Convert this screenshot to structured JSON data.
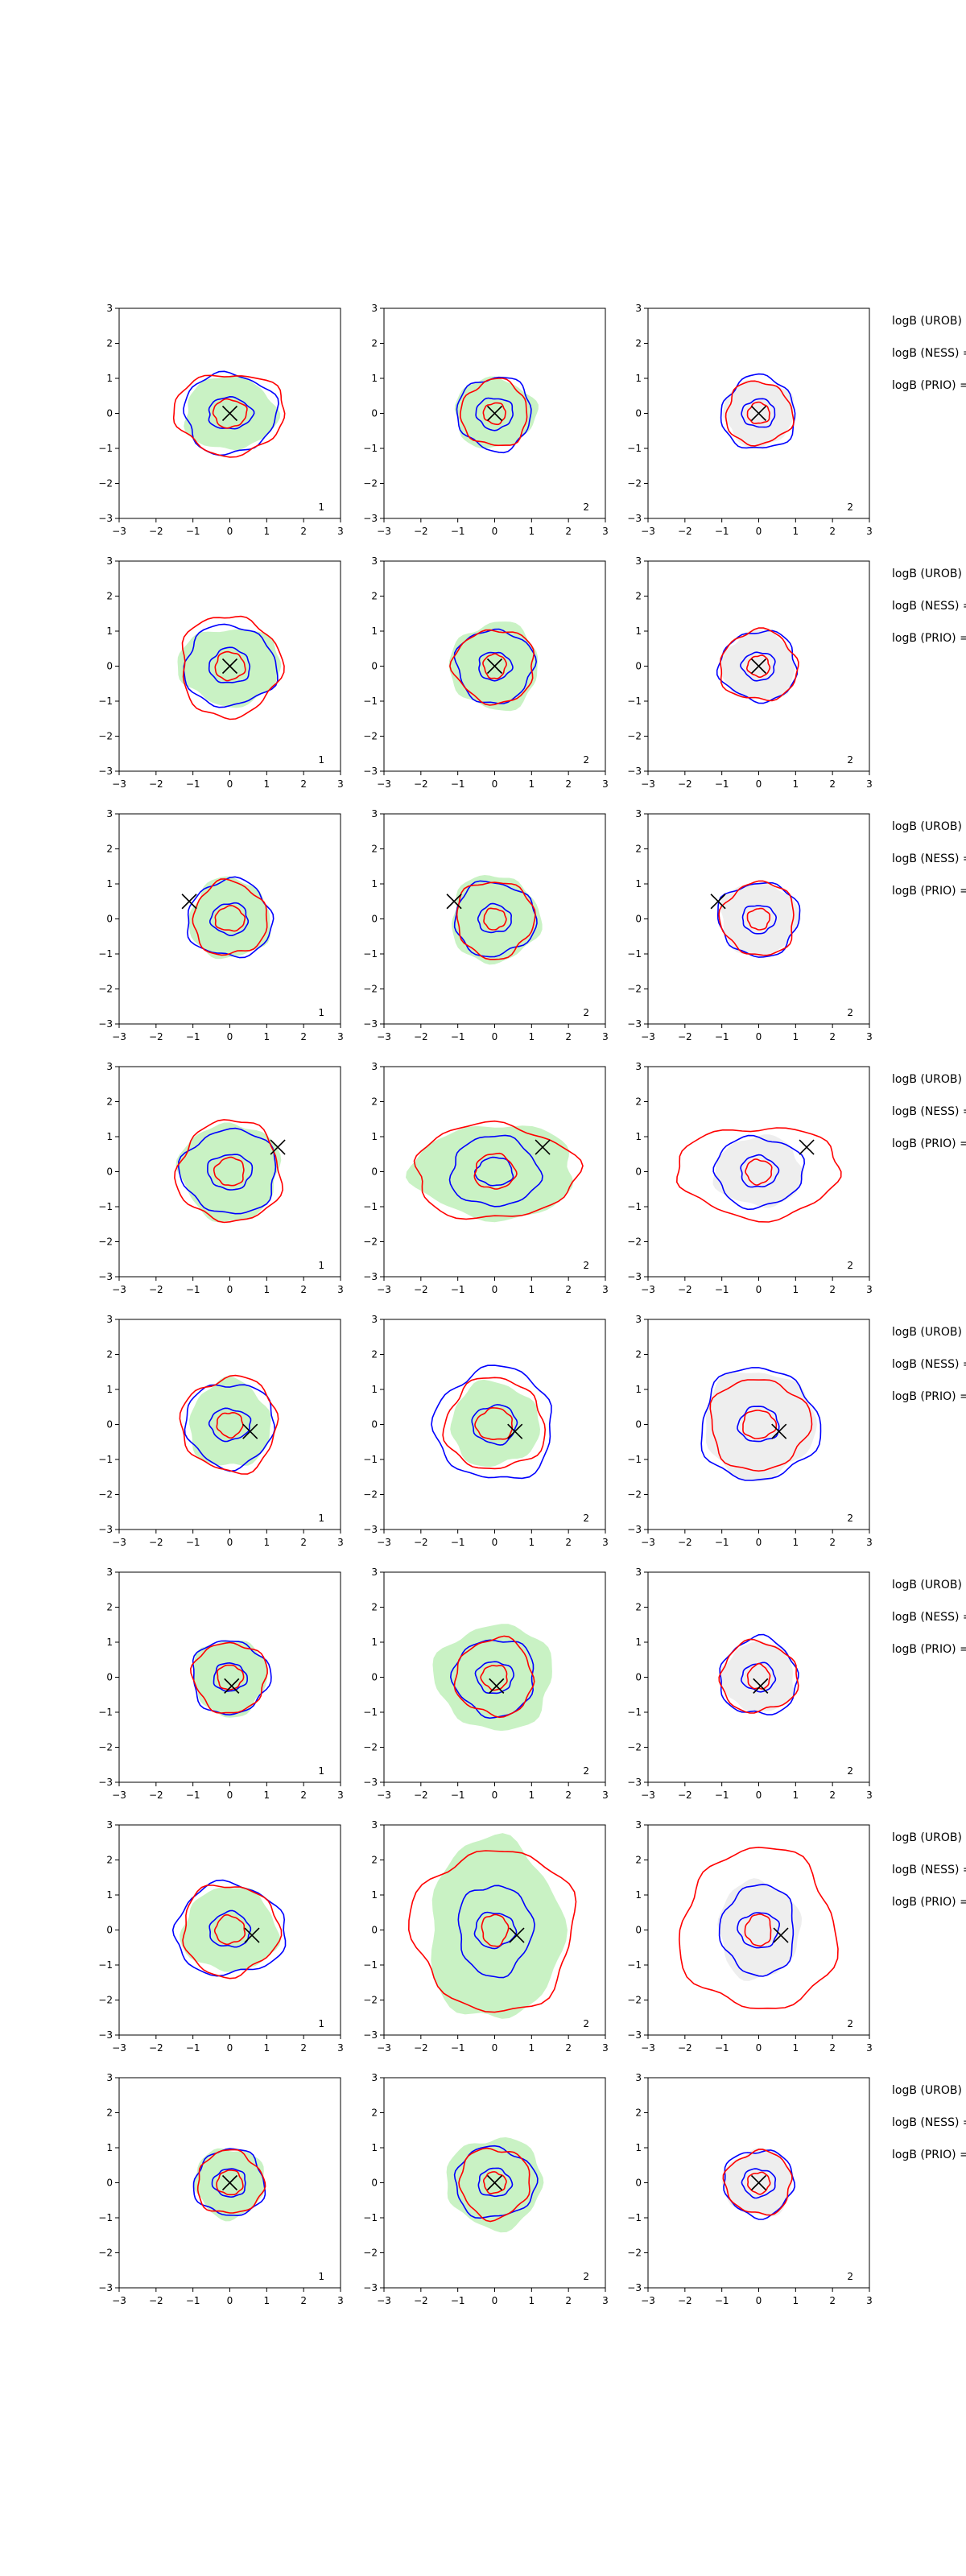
{
  "figure": {
    "background": "#ffffff",
    "colors": {
      "red": "#ff0000",
      "blue": "#0000ff",
      "green_fill": "#c9f2c4",
      "grey_fill": "#eeeeee",
      "marker": "#000000"
    }
  },
  "chart_data": {
    "type": "contour",
    "layout": {
      "rows": 8,
      "cols": 3
    },
    "xlim": [
      -3,
      3
    ],
    "ylim": [
      -3,
      3
    ],
    "ticks": [
      -3,
      -2,
      -1,
      0,
      1,
      2,
      3
    ],
    "tick_labels": [
      "−3",
      "−2",
      "−1",
      "0",
      "1",
      "2",
      "3"
    ],
    "panel_labels": [
      "1",
      "2",
      "2"
    ],
    "side_labels": [
      "logB (UROB) =",
      "logB (NESS) =",
      "logB (PRIO) ="
    ],
    "rows": [
      {
        "marker": [
          0.0,
          0.0
        ],
        "panels": [
          {
            "fill": "green",
            "fill_r": [
              1.25,
              1.05
            ],
            "blue": [
              [
                0.6,
                0.45
              ],
              [
                1.25,
                1.15
              ]
            ],
            "red": [
              [
                0.45,
                0.4
              ],
              [
                1.5,
                1.15
              ]
            ]
          },
          {
            "fill": "green",
            "fill_r": [
              1.1,
              1.0
            ],
            "blue": [
              [
                0.5,
                0.45
              ],
              [
                1.0,
                1.05
              ]
            ],
            "red": [
              [
                0.3,
                0.3
              ],
              [
                0.9,
                0.95
              ]
            ]
          },
          {
            "fill": "grey",
            "fill_r": [
              0.95,
              0.95
            ],
            "blue": [
              [
                0.45,
                0.4
              ],
              [
                1.0,
                1.05
              ]
            ],
            "red": [
              [
                0.3,
                0.3
              ],
              [
                0.9,
                0.9
              ]
            ]
          }
        ]
      },
      {
        "marker": [
          0.0,
          0.0
        ],
        "panels": [
          {
            "fill": "green",
            "fill_r": [
              1.4,
              1.1
            ],
            "blue": [
              [
                0.55,
                0.5
              ],
              [
                1.25,
                1.15
              ]
            ],
            "red": [
              [
                0.4,
                0.4
              ],
              [
                1.35,
                1.45
              ]
            ]
          },
          {
            "fill": "green",
            "fill_r": [
              1.2,
              1.25
            ],
            "blue": [
              [
                0.45,
                0.4
              ],
              [
                1.05,
                1.05
              ]
            ],
            "red": [
              [
                0.3,
                0.35
              ],
              [
                1.1,
                1.05
              ]
            ]
          },
          {
            "fill": "grey",
            "fill_r": [
              1.0,
              1.0
            ],
            "blue": [
              [
                0.45,
                0.4
              ],
              [
                1.05,
                1.0
              ]
            ],
            "red": [
              [
                0.3,
                0.3
              ],
              [
                1.05,
                1.0
              ]
            ]
          }
        ]
      },
      {
        "marker": [
          -1.1,
          0.5
        ],
        "panels": [
          {
            "fill": "green",
            "fill_r": [
              1.1,
              1.15
            ],
            "blue": [
              [
                0.5,
                0.45
              ],
              [
                1.15,
                1.1
              ]
            ],
            "red": [
              [
                0.4,
                0.35
              ],
              [
                1.0,
                1.05
              ]
            ]
          },
          {
            "fill": "green",
            "fill_r": [
              1.2,
              1.25
            ],
            "blue": [
              [
                0.45,
                0.4
              ],
              [
                1.1,
                1.05
              ]
            ],
            "red": [
              [
                0.3,
                0.3
              ],
              [
                1.05,
                1.1
              ]
            ]
          },
          {
            "fill": "grey",
            "fill_r": [
              1.05,
              1.05
            ],
            "blue": [
              [
                0.45,
                0.4
              ],
              [
                1.1,
                1.05
              ]
            ],
            "red": [
              [
                0.3,
                0.3
              ],
              [
                1.0,
                1.05
              ]
            ]
          }
        ]
      },
      {
        "marker": [
          1.3,
          0.7
        ],
        "panels": [
          {
            "fill": "green",
            "fill_r": [
              1.35,
              1.4
            ],
            "blue": [
              [
                0.6,
                0.5
              ],
              [
                1.3,
                1.2
              ]
            ],
            "red": [
              [
                0.4,
                0.4
              ],
              [
                1.4,
                1.45
              ]
            ]
          },
          {
            "fill": "green",
            "fill_r": [
              2.2,
              1.35
            ],
            "blue": [
              [
                0.5,
                0.4
              ],
              [
                1.2,
                1.0
              ]
            ],
            "red": [
              [
                0.55,
                0.5
              ],
              [
                2.2,
                1.35
              ]
            ]
          },
          {
            "fill": "grey",
            "fill_r": [
              1.2,
              1.0
            ],
            "blue": [
              [
                0.5,
                0.45
              ],
              [
                1.2,
                1.0
              ]
            ],
            "red": [
              [
                0.35,
                0.35
              ],
              [
                2.2,
                1.3
              ]
            ]
          }
        ]
      },
      {
        "marker": [
          0.55,
          -0.2
        ],
        "panels": [
          {
            "fill": "green",
            "fill_r": [
              1.1,
              1.25
            ],
            "blue": [
              [
                0.55,
                0.45
              ],
              [
                1.2,
                1.2
              ]
            ],
            "red": [
              [
                0.35,
                0.35
              ],
              [
                1.3,
                1.35
              ]
            ]
          },
          {
            "fill": "green",
            "fill_r": [
              1.2,
              1.2
            ],
            "blue": [
              [
                0.6,
                0.55
              ],
              [
                1.6,
                1.6
              ]
            ],
            "red": [
              [
                0.5,
                0.45
              ],
              [
                1.35,
                1.3
              ]
            ]
          },
          {
            "fill": "grey",
            "fill_r": [
              1.5,
              1.55
            ],
            "blue": [
              [
                0.55,
                0.5
              ],
              [
                1.6,
                1.6
              ]
            ],
            "red": [
              [
                0.45,
                0.4
              ],
              [
                1.35,
                1.3
              ]
            ]
          }
        ]
      },
      {
        "marker": [
          0.05,
          -0.25
        ],
        "panels": [
          {
            "fill": "green",
            "fill_r": [
              1.0,
              1.1
            ],
            "blue": [
              [
                0.45,
                0.4
              ],
              [
                1.05,
                1.05
              ]
            ],
            "red": [
              [
                0.35,
                0.35
              ],
              [
                1.0,
                1.0
              ]
            ]
          },
          {
            "fill": "green",
            "fill_r": [
              1.6,
              1.5
            ],
            "blue": [
              [
                0.5,
                0.45
              ],
              [
                1.1,
                1.1
              ]
            ],
            "red": [
              [
                0.35,
                0.35
              ],
              [
                1.05,
                1.1
              ]
            ]
          },
          {
            "fill": "grey",
            "fill_r": [
              1.0,
              1.0
            ],
            "blue": [
              [
                0.45,
                0.4
              ],
              [
                1.05,
                1.1
              ]
            ],
            "red": [
              [
                0.3,
                0.35
              ],
              [
                1.05,
                1.0
              ]
            ]
          }
        ]
      },
      {
        "marker": [
          0.6,
          -0.15
        ],
        "panels": [
          {
            "fill": "green",
            "fill_r": [
              1.3,
              1.2
            ],
            "blue": [
              [
                0.55,
                0.5
              ],
              [
                1.5,
                1.3
              ]
            ],
            "red": [
              [
                0.4,
                0.4
              ],
              [
                1.3,
                1.3
              ]
            ]
          },
          {
            "fill": "green",
            "fill_r": [
              1.8,
              2.6
            ],
            "blue": [
              [
                0.55,
                0.5
              ],
              [
                1.0,
                1.3
              ]
            ],
            "red": [
              [
                0.35,
                0.45
              ],
              [
                2.2,
                2.3
              ]
            ]
          },
          {
            "fill": "grey",
            "fill_r": [
              1.1,
              1.4
            ],
            "blue": [
              [
                0.55,
                0.5
              ],
              [
                1.0,
                1.3
              ]
            ],
            "red": [
              [
                0.35,
                0.45
              ],
              [
                2.1,
                2.3
              ]
            ]
          }
        ]
      },
      {
        "marker": [
          0.0,
          0.0
        ],
        "panels": [
          {
            "fill": "green",
            "fill_r": [
              0.95,
              1.0
            ],
            "blue": [
              [
                0.45,
                0.4
              ],
              [
                0.95,
                0.95
              ]
            ],
            "red": [
              [
                0.35,
                0.35
              ],
              [
                0.9,
                0.9
              ]
            ]
          },
          {
            "fill": "green",
            "fill_r": [
              1.3,
              1.3
            ],
            "blue": [
              [
                0.45,
                0.4
              ],
              [
                1.1,
                1.0
              ]
            ],
            "red": [
              [
                0.3,
                0.3
              ],
              [
                0.95,
                1.0
              ]
            ]
          },
          {
            "fill": "grey",
            "fill_r": [
              0.95,
              0.95
            ],
            "blue": [
              [
                0.45,
                0.4
              ],
              [
                0.95,
                0.95
              ]
            ],
            "red": [
              [
                0.3,
                0.3
              ],
              [
                0.9,
                0.9
              ]
            ]
          }
        ]
      }
    ]
  }
}
